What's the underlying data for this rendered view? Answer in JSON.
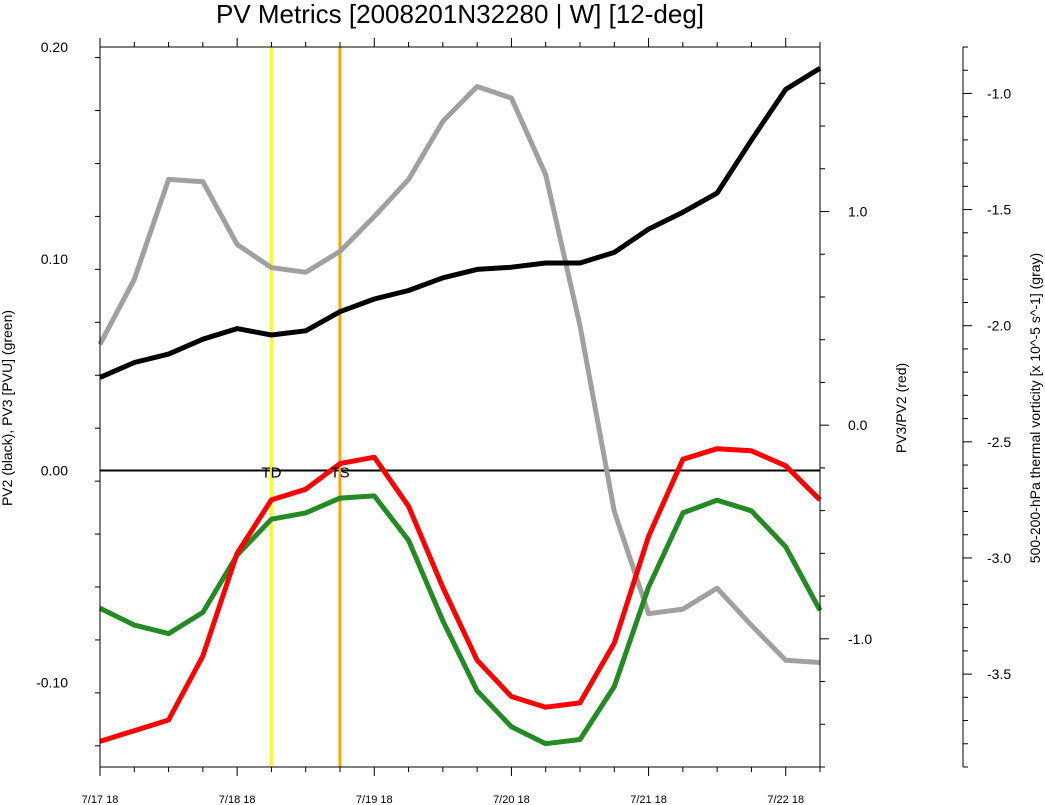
{
  "chart_data": {
    "type": "line",
    "title": "PV Metrics [2008201N32280 | W] [12-deg]",
    "x_tick_labels": [
      "7/17 18",
      "7/18 18",
      "7/19 18",
      "7/20 18",
      "7/21 18",
      "7/22 18"
    ],
    "x_day_range": [
      0,
      5.25
    ],
    "axes": {
      "left": {
        "label": "PV2 (black), PV3 [PVU] (green)",
        "ylim": [
          -0.14,
          0.2
        ],
        "ticks": [
          {
            "value": 0.2,
            "label": "0.20"
          },
          {
            "value": 0.1,
            "label": "0.10"
          },
          {
            "value": 0.0,
            "label": "0.00"
          },
          {
            "value": -0.1,
            "label": "-0.10"
          }
        ]
      },
      "right": {
        "label": "PV3/PV2 (red)",
        "ylim": [
          -1.6,
          1.77
        ],
        "ticks": [
          {
            "value": 1.0,
            "label": "1.0"
          },
          {
            "value": 0.0,
            "label": "0.0"
          },
          {
            "value": -1.0,
            "label": "-1.0"
          }
        ]
      },
      "far_right": {
        "label": "500-200-hPa thermal vorticity [x 10^-5 s^-1] (gray)",
        "ylim": [
          -3.9,
          -0.8
        ],
        "ticks": [
          {
            "value": -1.0,
            "label": "-1.0"
          },
          {
            "value": -1.5,
            "label": "-1.5"
          },
          {
            "value": -2.0,
            "label": "-2.0"
          },
          {
            "value": -2.5,
            "label": "-2.5"
          },
          {
            "value": -3.0,
            "label": "-3.0"
          },
          {
            "value": -3.5,
            "label": "-3.5"
          }
        ]
      }
    },
    "x_days": [
      0,
      0.25,
      0.5,
      0.75,
      1.0,
      1.25,
      1.5,
      1.75,
      2.0,
      2.25,
      2.5,
      2.75,
      3.0,
      3.25,
      3.5,
      3.75,
      4.0,
      4.25,
      4.5,
      4.75,
      5.0,
      5.25
    ],
    "series": [
      {
        "axis": "left",
        "color": "#000000",
        "values": [
          0.044,
          0.051,
          0.055,
          0.062,
          0.067,
          0.064,
          0.066,
          0.075,
          0.081,
          0.085,
          0.091,
          0.095,
          0.096,
          0.098,
          0.098,
          0.103,
          0.114,
          0.122,
          0.131,
          0.156,
          0.18,
          0.19
        ]
      },
      {
        "axis": "left",
        "color": "#228b22",
        "values": [
          -0.065,
          -0.073,
          -0.077,
          -0.067,
          -0.04,
          -0.023,
          -0.02,
          -0.013,
          -0.012,
          -0.033,
          -0.071,
          -0.104,
          -0.121,
          -0.129,
          -0.127,
          -0.102,
          -0.055,
          -0.02,
          -0.014,
          -0.019,
          -0.036,
          -0.066
        ]
      },
      {
        "axis": "right",
        "color": "#ff0000",
        "values": [
          -1.48,
          -1.43,
          -1.38,
          -1.08,
          -0.6,
          -0.35,
          -0.3,
          -0.18,
          -0.15,
          -0.38,
          -0.76,
          -1.1,
          -1.27,
          -1.32,
          -1.3,
          -1.02,
          -0.52,
          -0.16,
          -0.11,
          -0.12,
          -0.19,
          -0.35
        ]
      },
      {
        "axis": "far_right",
        "color": "#a0a0a0",
        "values": [
          -2.08,
          -1.8,
          -1.37,
          -1.38,
          -1.65,
          -1.75,
          -1.77,
          -1.68,
          -1.53,
          -1.37,
          -1.12,
          -0.97,
          -1.02,
          -1.35,
          -2.0,
          -2.8,
          -3.24,
          -3.22,
          -3.13,
          -3.29,
          -3.44,
          -3.45
        ]
      }
    ],
    "vlines": [
      {
        "day": 1.25,
        "color": "#ffff00",
        "label": "TD"
      },
      {
        "day": 1.75,
        "color": "#ffa500",
        "label": "TS"
      }
    ],
    "zero_line": {
      "axis": "left",
      "value": 0.0
    }
  }
}
